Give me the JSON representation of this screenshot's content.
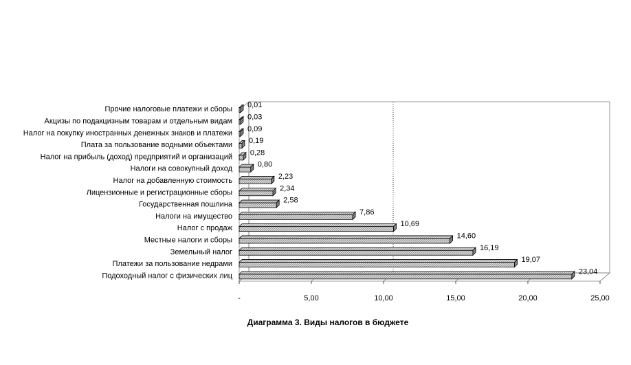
{
  "chart_data": {
    "type": "bar",
    "orientation": "horizontal",
    "title": "Диаграмма 3. Виды налогов в бюджете",
    "categories": [
      "Подоходный налог с физических лиц",
      "Платежи за пользование недрами",
      "Земельный налог",
      "Местные налоги и сборы",
      "Налог с продаж",
      "Налоги на имущество",
      "Государственная пошлина",
      "Лицензионные и регистрационные сборы",
      "Налог на добавленную стоимость",
      "Налоги на совокупный доход",
      "Налог на прибыль (доход) предприятий и организаций",
      "Плата за пользование водными объектами",
      "Налог на покупку иностранных денежных знаков  и платежи",
      "Акцизы по подакцизным товарам и отдельным видам",
      "Прочие налоговые платежи и сборы"
    ],
    "values": [
      23.04,
      19.07,
      16.19,
      14.6,
      10.69,
      7.86,
      2.58,
      2.34,
      2.23,
      0.8,
      0.28,
      0.19,
      0.09,
      0.03,
      0.01
    ],
    "value_labels": [
      "23,04",
      "19,07",
      "16,19",
      "14,60",
      "10,69",
      "7,86",
      "2,58",
      "2,34",
      "2,23",
      "0,80",
      "0,28",
      "0,19",
      "0,09",
      "0,03",
      "0,01"
    ],
    "xlim": [
      0,
      25
    ],
    "x_ticks": [
      "-",
      "5,00",
      "10,00",
      "15,00",
      "20,00",
      "25,00"
    ],
    "reference_line": 10.0,
    "grid": false,
    "style": "3d",
    "bar_fill": "#d9d9d9",
    "bar_hatch": "#8c8c8c",
    "bar_stroke": "#000000"
  }
}
